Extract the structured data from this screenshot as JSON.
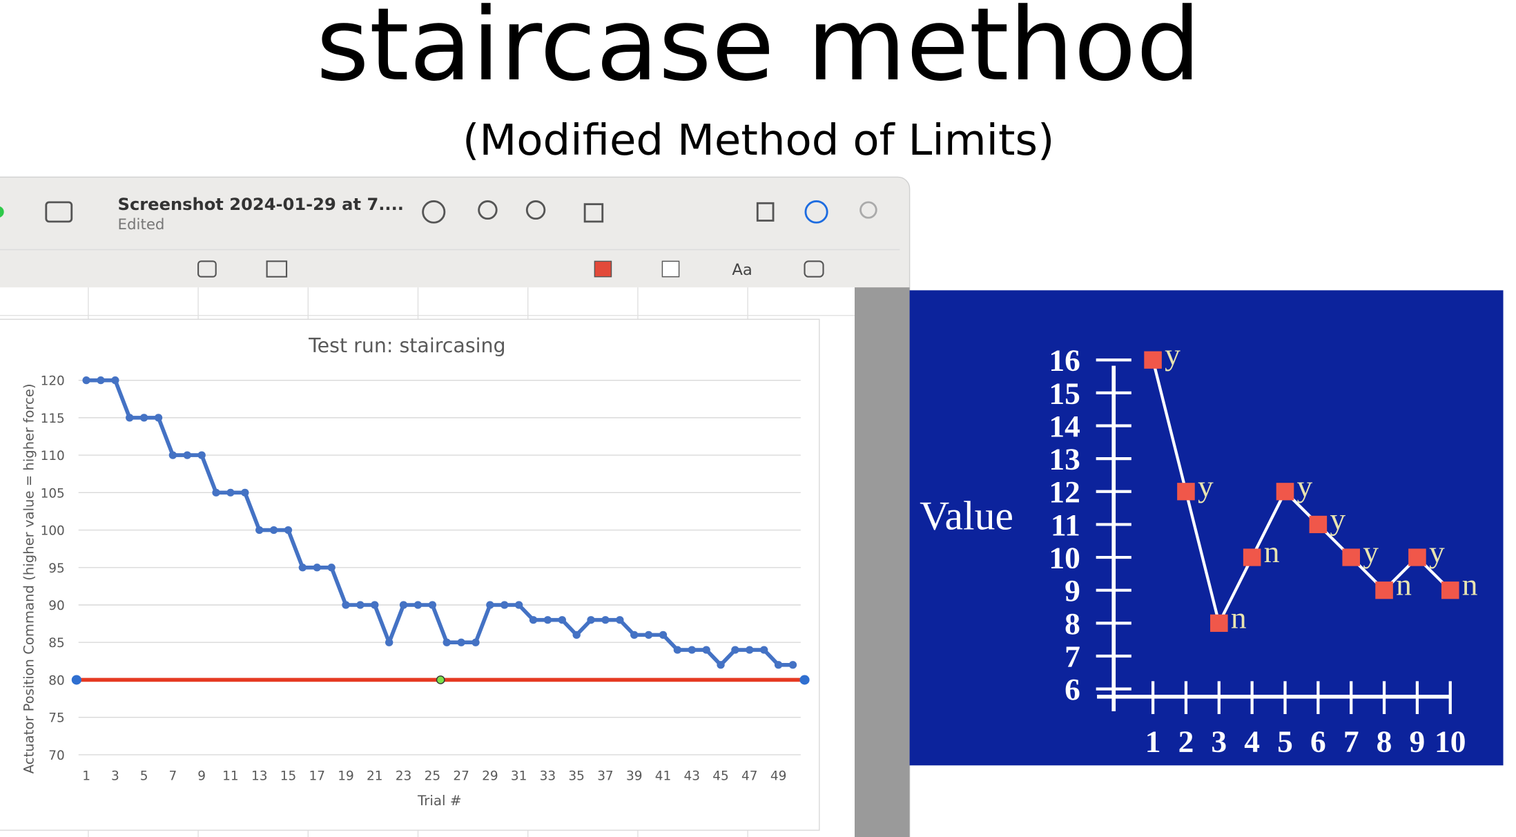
{
  "slide": {
    "title": "staircase method",
    "subtitle": "(Modified Method of Limits)"
  },
  "window": {
    "filename": "Screenshot 2024-01-29 at 7....",
    "status": "Edited",
    "text_tool": "Aa"
  },
  "chart_data": [
    {
      "type": "line",
      "title": "Test run: staircasing",
      "y_label": "Actuator Position Command (higher value = higher force)",
      "x_label": "Trial #",
      "categories": [
        1,
        null,
        3,
        null,
        5,
        null,
        7,
        null,
        9,
        null,
        11,
        null,
        13,
        null,
        15,
        null,
        17,
        null,
        19,
        null,
        21,
        null,
        23,
        null,
        25,
        null,
        27,
        null,
        29,
        null,
        31,
        null,
        33,
        null,
        35,
        null,
        37,
        null,
        39,
        null,
        41,
        null,
        43,
        null,
        45,
        null,
        47,
        null,
        49,
        null
      ],
      "values": [
        120,
        120,
        120,
        115,
        115,
        115,
        110,
        110,
        110,
        105,
        105,
        105,
        100,
        100,
        100,
        95,
        95,
        95,
        90,
        90,
        90,
        85,
        90,
        90,
        90,
        85,
        85,
        85,
        90,
        90,
        90,
        88,
        88,
        88,
        86,
        88,
        88,
        88,
        86,
        86,
        86,
        84,
        84,
        84,
        82,
        84,
        84,
        84,
        82,
        82
      ],
      "color": "#4472c4",
      "ylim": [
        70,
        120
      ],
      "yticks": [
        70,
        75,
        80,
        85,
        90,
        95,
        100,
        105,
        110,
        115,
        120
      ],
      "grid": true,
      "reference_line": 80,
      "reference_color": "#e53a22"
    },
    {
      "type": "line",
      "y_label": "Value",
      "x": [
        1,
        2,
        3,
        4,
        5,
        6,
        7,
        8,
        9,
        10
      ],
      "values": [
        16,
        12,
        8,
        10,
        12,
        11,
        10,
        9,
        10,
        9
      ],
      "point_labels": [
        "y",
        "y",
        "n",
        "n",
        "y",
        "y",
        "y",
        "n",
        "y",
        "n"
      ],
      "color": "#ffffff",
      "marker_color": "#f0574a",
      "xlim": [
        1,
        10
      ],
      "xticks": [
        1,
        2,
        3,
        4,
        5,
        6,
        7,
        8,
        9,
        10
      ],
      "ylim": [
        6,
        16
      ],
      "yticks": [
        6,
        7,
        8,
        9,
        10,
        11,
        12,
        13,
        14,
        15,
        16
      ],
      "grid": false
    }
  ]
}
